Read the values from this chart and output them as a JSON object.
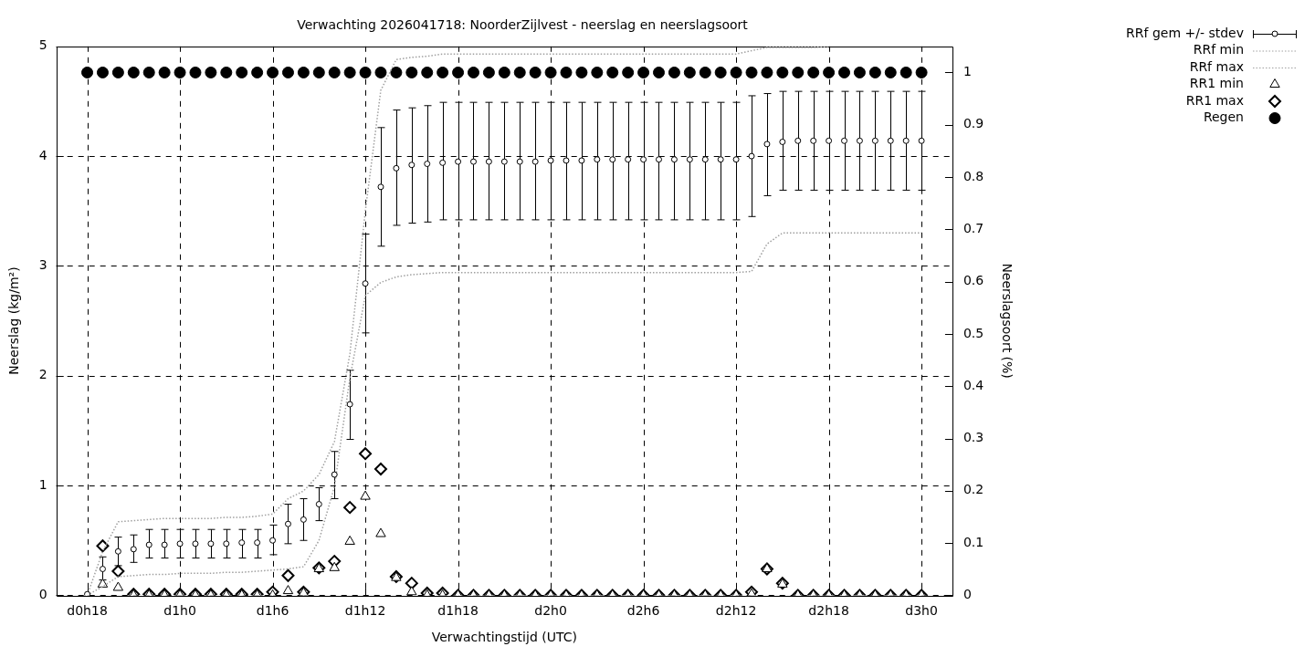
{
  "chart_data": {
    "type": "scatter",
    "title": "Verwachting 2026041718: NoorderZijlvest - neerslag en neerslagsoort",
    "xlabel": "Verwachtingstijd (UTC)",
    "ylabel": "Neerslag (kg/m²)",
    "y2label": "Neerslagsoort (%)",
    "categories": [
      "d0h18",
      null,
      null,
      null,
      null,
      null,
      "d1h0",
      null,
      null,
      null,
      null,
      null,
      "d1h6",
      null,
      null,
      null,
      null,
      null,
      "d1h12",
      null,
      null,
      null,
      null,
      null,
      "d1h18",
      null,
      null,
      null,
      null,
      null,
      "d2h0",
      null,
      null,
      null,
      null,
      null,
      "d2h6",
      null,
      null,
      null,
      null,
      null,
      "d2h12",
      null,
      null,
      null,
      null,
      null,
      "d2h18",
      null,
      null,
      null,
      null,
      null,
      "d3h0"
    ],
    "ylim": [
      0,
      5
    ],
    "yticks": [
      0,
      1,
      2,
      3,
      4,
      5
    ],
    "y2lim": [
      0,
      1.05
    ],
    "y2ticks": [
      0,
      0.1,
      0.2,
      0.3,
      0.4,
      0.5,
      0.6,
      0.7,
      0.8,
      0.9,
      1
    ],
    "grid": true,
    "legend": "top right",
    "series": [
      {
        "name": "RRf gem +/- stdev",
        "type": "scatter",
        "marker": "circle",
        "color": "#000000",
        "values": [
          0.01,
          0.24,
          0.4,
          0.42,
          0.46,
          0.46,
          0.47,
          0.47,
          0.47,
          0.47,
          0.48,
          0.48,
          0.5,
          0.65,
          0.69,
          0.83,
          1.1,
          1.74,
          2.84,
          3.72,
          3.89,
          3.92,
          3.93,
          3.94,
          3.95,
          3.95,
          3.95,
          3.95,
          3.95,
          3.95,
          3.96,
          3.96,
          3.96,
          3.97,
          3.97,
          3.97,
          3.97,
          3.97,
          3.97,
          3.97,
          3.97,
          3.97,
          3.97,
          4.0,
          4.11,
          4.13,
          4.14,
          4.14,
          4.14,
          4.14,
          4.14,
          4.14,
          4.14,
          4.14,
          4.14
        ],
        "errors": [
          null,
          [
            0.14,
            0.35
          ],
          [
            0.27,
            0.53
          ],
          [
            0.3,
            0.55
          ],
          [
            0.34,
            0.6
          ],
          [
            0.34,
            0.6
          ],
          [
            0.34,
            0.6
          ],
          [
            0.34,
            0.6
          ],
          [
            0.34,
            0.6
          ],
          [
            0.34,
            0.6
          ],
          [
            0.34,
            0.6
          ],
          [
            0.34,
            0.6
          ],
          [
            0.37,
            0.64
          ],
          [
            0.47,
            0.83
          ],
          [
            0.5,
            0.88
          ],
          [
            0.68,
            0.98
          ],
          [
            0.88,
            1.31
          ],
          [
            1.42,
            2.05
          ],
          [
            2.39,
            3.29
          ],
          [
            3.18,
            4.26
          ],
          [
            3.37,
            4.42
          ],
          [
            3.39,
            4.44
          ],
          [
            3.4,
            4.46
          ],
          [
            3.42,
            4.49
          ],
          [
            3.42,
            4.49
          ],
          [
            3.42,
            4.49
          ],
          [
            3.42,
            4.49
          ],
          [
            3.42,
            4.49
          ],
          [
            3.42,
            4.49
          ],
          [
            3.42,
            4.49
          ],
          [
            3.42,
            4.49
          ],
          [
            3.42,
            4.49
          ],
          [
            3.42,
            4.49
          ],
          [
            3.42,
            4.49
          ],
          [
            3.42,
            4.49
          ],
          [
            3.42,
            4.49
          ],
          [
            3.42,
            4.49
          ],
          [
            3.42,
            4.49
          ],
          [
            3.42,
            4.49
          ],
          [
            3.42,
            4.49
          ],
          [
            3.42,
            4.49
          ],
          [
            3.42,
            4.49
          ],
          [
            3.42,
            4.49
          ],
          [
            3.45,
            4.55
          ],
          [
            3.64,
            4.57
          ],
          [
            3.69,
            4.59
          ],
          [
            3.69,
            4.59
          ],
          [
            3.69,
            4.59
          ],
          [
            3.69,
            4.59
          ],
          [
            3.69,
            4.59
          ],
          [
            3.69,
            4.59
          ],
          [
            3.69,
            4.59
          ],
          [
            3.69,
            4.59
          ],
          [
            3.69,
            4.59
          ],
          [
            3.69,
            4.59
          ]
        ]
      },
      {
        "name": "RRf min",
        "type": "line",
        "marker": "none",
        "line_style": "dotted",
        "color": "#a0a0a0",
        "values": [
          0,
          0.08,
          0.17,
          0.18,
          0.19,
          0.19,
          0.2,
          0.2,
          0.2,
          0.21,
          0.21,
          0.22,
          0.23,
          0.24,
          0.26,
          0.5,
          0.99,
          1.98,
          2.73,
          2.85,
          2.9,
          2.92,
          2.93,
          2.94,
          2.94,
          2.94,
          2.94,
          2.94,
          2.94,
          2.94,
          2.94,
          2.94,
          2.94,
          2.94,
          2.94,
          2.94,
          2.94,
          2.94,
          2.94,
          2.94,
          2.94,
          2.94,
          2.94,
          2.95,
          3.2,
          3.3,
          3.3,
          3.3,
          3.3,
          3.3,
          3.3,
          3.3,
          3.3,
          3.3,
          3.3
        ]
      },
      {
        "name": "RRf max",
        "type": "line",
        "marker": "none",
        "line_style": "dotted",
        "color": "#a0a0a0",
        "values": [
          0,
          0.4,
          0.67,
          0.68,
          0.69,
          0.7,
          0.7,
          0.7,
          0.7,
          0.71,
          0.71,
          0.72,
          0.74,
          0.88,
          0.95,
          1.1,
          1.4,
          2.2,
          3.5,
          4.6,
          4.88,
          4.9,
          4.91,
          4.93,
          4.93,
          4.93,
          4.93,
          4.93,
          4.93,
          4.93,
          4.93,
          4.93,
          4.93,
          4.93,
          4.93,
          4.93,
          4.93,
          4.93,
          4.93,
          4.93,
          4.93,
          4.93,
          4.93,
          4.96,
          4.99,
          4.99,
          4.99,
          4.99,
          5.0,
          null,
          null,
          null,
          null,
          null,
          null
        ]
      },
      {
        "name": "RR1 min",
        "type": "scatter",
        "marker": "triangle",
        "color": "#000000",
        "values": [
          null,
          0.1,
          0.07,
          0,
          0,
          0,
          0,
          0,
          0,
          0,
          0,
          0,
          0,
          0.04,
          0.02,
          0.24,
          0.25,
          0.49,
          0.9,
          0.56,
          0.16,
          0.03,
          0,
          0,
          0,
          0,
          0,
          0,
          0,
          0,
          0,
          0,
          0,
          0,
          0,
          0,
          0,
          0,
          0,
          0,
          0,
          0,
          0,
          0.01,
          0.24,
          0.1,
          0,
          0,
          0,
          0,
          0,
          0,
          0,
          0,
          0
        ]
      },
      {
        "name": "RR1 max",
        "type": "scatter",
        "marker": "diamond",
        "color": "#000000",
        "values": [
          null,
          0.45,
          0.22,
          0.01,
          0.01,
          0.01,
          0.01,
          0.01,
          0.01,
          0.01,
          0.01,
          0.01,
          0.03,
          0.18,
          0.03,
          0.25,
          0.31,
          0.8,
          1.29,
          1.15,
          0.17,
          0.11,
          0.02,
          0.02,
          0,
          0,
          0,
          0,
          0,
          0,
          0,
          0,
          0,
          0,
          0,
          0,
          0,
          0,
          0,
          0,
          0,
          0,
          0,
          0.03,
          0.24,
          0.11,
          0,
          0,
          0,
          0,
          0,
          0,
          0,
          0,
          0
        ]
      },
      {
        "name": "Regen",
        "type": "scatter",
        "marker": "circle",
        "axis": "y2",
        "color": "#000000",
        "values": [
          1,
          1,
          1,
          1,
          1,
          1,
          1,
          1,
          1,
          1,
          1,
          1,
          1,
          1,
          1,
          1,
          1,
          1,
          1,
          1,
          1,
          1,
          1,
          1,
          1,
          1,
          1,
          1,
          1,
          1,
          1,
          1,
          1,
          1,
          1,
          1,
          1,
          1,
          1,
          1,
          1,
          1,
          1,
          1,
          1,
          1,
          1,
          1,
          1,
          1,
          1,
          1,
          1,
          1,
          1
        ]
      }
    ]
  }
}
